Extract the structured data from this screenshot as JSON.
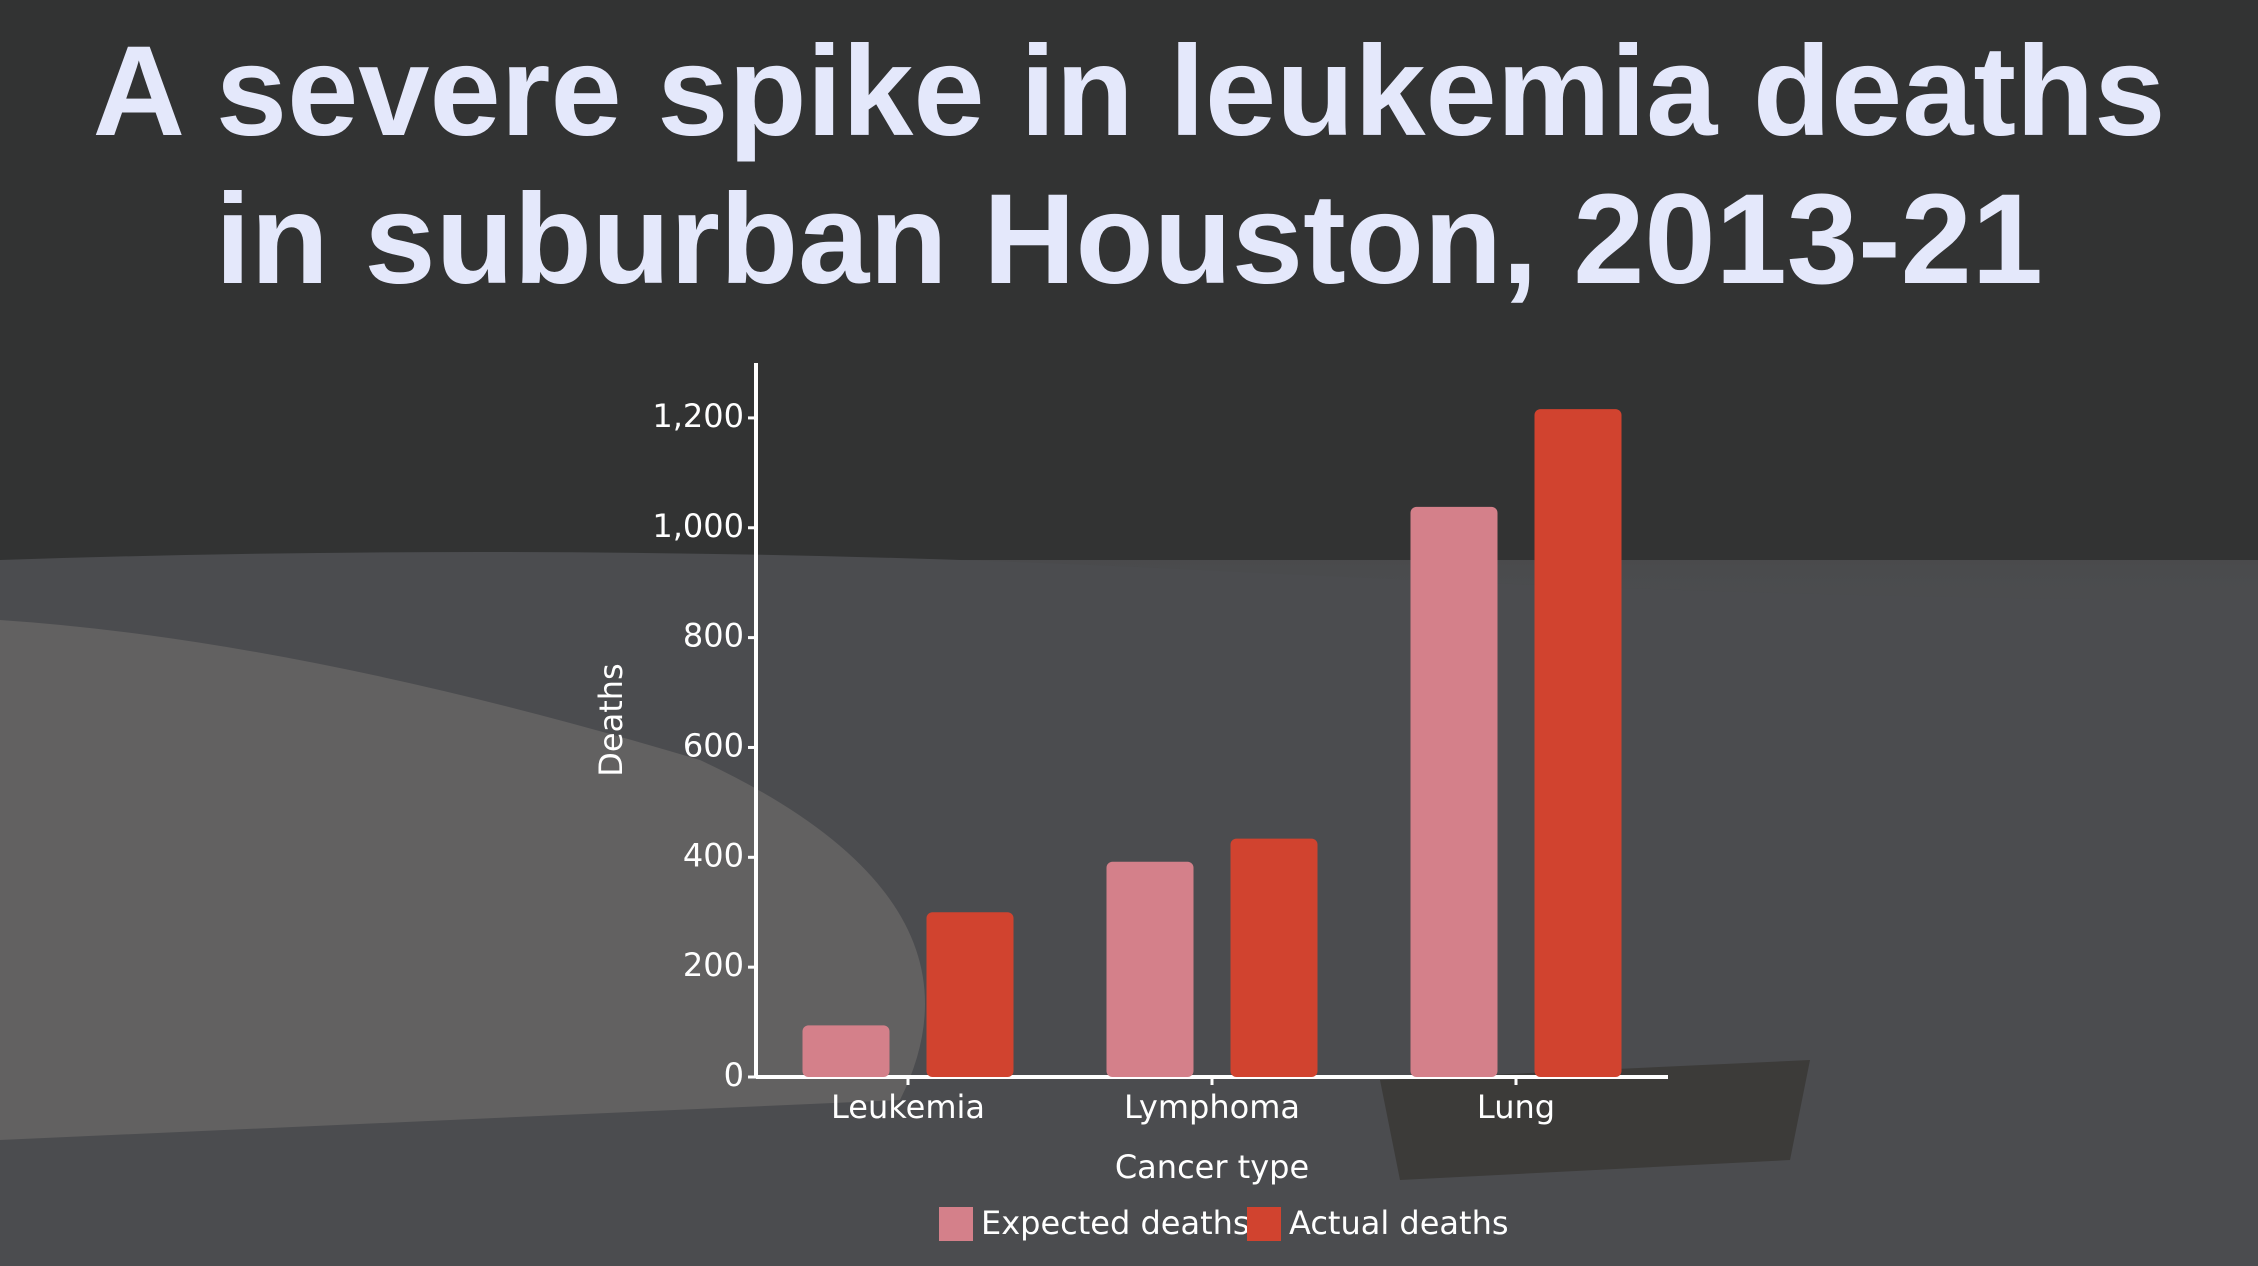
{
  "chart_data": {
    "type": "bar",
    "title": "A severe spike in leukemia deaths in suburban Houston, 2013-21",
    "categories": [
      "Leukemia",
      "Lymphoma",
      "Lung"
    ],
    "series": [
      {
        "name": "Expected deaths",
        "color": "#d4808a",
        "values": [
          94,
          392,
          1038
        ]
      },
      {
        "name": "Actual deaths",
        "color": "#d1432f",
        "values": [
          300,
          434,
          1216
        ]
      }
    ],
    "x_label": "Cancer type",
    "y_label": "Deaths",
    "ylim": [
      0,
      1300
    ],
    "yticks": [
      0,
      200,
      400,
      600,
      800,
      {
        "value": 1000,
        "label": "1,000"
      },
      {
        "value": 1200,
        "label": "1,200"
      }
    ],
    "grid": false,
    "legend": "bottom"
  }
}
